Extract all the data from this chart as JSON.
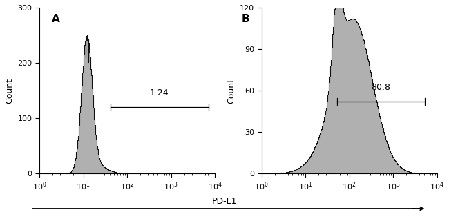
{
  "panel_A": {
    "label": "A",
    "ylim": [
      0,
      300
    ],
    "yticks": [
      0,
      100,
      200,
      300
    ],
    "annotation_text": "1.24",
    "bracket_x_start_log": 1.62,
    "bracket_x_end_log": 3.85,
    "bracket_y": 120
  },
  "panel_B": {
    "label": "B",
    "ylim": [
      0,
      120
    ],
    "yticks": [
      0,
      30,
      60,
      90,
      120
    ],
    "annotation_text": "80.8",
    "bracket_x_start_log": 1.72,
    "bracket_x_end_log": 3.72,
    "bracket_y": 52
  },
  "xlim_log": [
    0,
    4
  ],
  "xticks_log": [
    0,
    1,
    2,
    3,
    4
  ],
  "xlabel": "PD-L1",
  "ylabel": "Count",
  "fill_color": "#b0b0b0",
  "edge_color": "#111111",
  "background_color": "#ffffff",
  "font_size_label": 10,
  "font_size_annotation": 9,
  "font_size_axis_label": 9,
  "font_size_tick": 8
}
